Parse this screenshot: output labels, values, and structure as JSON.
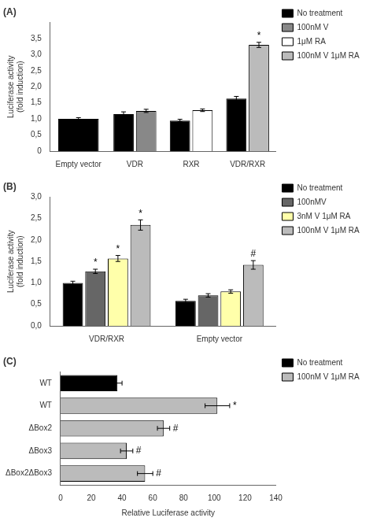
{
  "chart_data": [
    {
      "type": "bar",
      "title": "(A)",
      "categories": [
        "Empty vector",
        "VDR",
        "RXR",
        "VDR/RXR"
      ],
      "series": [
        {
          "name": "No treatment",
          "color": "#000000",
          "values": [
            1.0,
            1.15,
            0.95,
            1.63
          ],
          "errors": [
            0.04,
            0.07,
            0.04,
            0.07
          ],
          "annotations": [
            null,
            null,
            null,
            null
          ]
        },
        {
          "name": "100nM V",
          "color": "#888888",
          "values": [
            null,
            1.25,
            null,
            null
          ],
          "errors": [
            null,
            0.05,
            null,
            null
          ],
          "annotations": [
            null,
            null,
            null,
            null
          ]
        },
        {
          "name": "1μM RA",
          "color": "#ffffff",
          "values": [
            null,
            null,
            1.27,
            null
          ],
          "errors": [
            null,
            null,
            0.04,
            null
          ],
          "annotations": [
            null,
            null,
            null,
            null
          ]
        },
        {
          "name": "100nM V 1μM RA",
          "color": "#bbbbbb",
          "values": [
            null,
            null,
            null,
            3.3
          ],
          "errors": [
            null,
            null,
            null,
            0.08
          ],
          "annotations": [
            null,
            null,
            null,
            "*"
          ]
        }
      ],
      "ylabel": "Luciferase activity\n(fold induction)",
      "ylim": [
        0,
        4
      ],
      "yticks": [
        0,
        {
          "value": 0.5,
          "label": "0,5"
        },
        {
          "value": 1.0,
          "label": "1,0"
        },
        {
          "value": 1.5,
          "label": "1,5"
        },
        {
          "value": 2.0,
          "label": "2,0"
        },
        {
          "value": 2.5,
          "label": "2,5"
        },
        {
          "value": 3.0,
          "label": "3,0"
        },
        {
          "value": 3.5,
          "label": "3,5"
        }
      ],
      "grid": false,
      "legend": "right"
    },
    {
      "type": "bar",
      "title": "(B)",
      "categories": [
        "VDR/RXR",
        "Empty vector"
      ],
      "series": [
        {
          "name": "No treatment",
          "color": "#000000",
          "values": [
            1.0,
            0.58
          ],
          "errors": [
            0.04,
            0.04
          ],
          "annotations": [
            null,
            null
          ]
        },
        {
          "name": "100nMV",
          "color": "#666666",
          "values": [
            1.27,
            0.71
          ],
          "errors": [
            0.05,
            0.04
          ],
          "annotations": [
            "*",
            null
          ]
        },
        {
          "name": "3nM V 1μM RA",
          "color": "#ffffaa",
          "values": [
            1.57,
            0.8
          ],
          "errors": [
            0.07,
            0.04
          ],
          "annotations": [
            "*",
            null
          ]
        },
        {
          "name": "100nM V 1μM RA",
          "color": "#bbbbbb",
          "values": [
            2.35,
            1.42
          ],
          "errors": [
            0.12,
            0.1
          ],
          "annotations": [
            "*",
            "#"
          ]
        }
      ],
      "ylabel": "Luciferase activity\n(fold induction)",
      "ylim": [
        0,
        3.0
      ],
      "yticks": [
        {
          "value": 0.0,
          "label": "0,0"
        },
        {
          "value": 0.5,
          "label": "0,5"
        },
        {
          "value": 1.0,
          "label": "1,0"
        },
        {
          "value": 1.5,
          "label": "1,5"
        },
        {
          "value": 2.0,
          "label": "2,0"
        },
        {
          "value": 2.5,
          "label": "2,5"
        },
        {
          "value": 3.0,
          "label": "3,0"
        }
      ],
      "grid": false,
      "legend": "right"
    },
    {
      "type": "bar",
      "title": "(C)",
      "orientation": "horizontal",
      "categories": [
        "WT",
        "WT",
        "ΔBox2",
        "ΔBox3",
        "ΔBox2ΔBox3"
      ],
      "series": [
        {
          "name": "No treatment",
          "color": "#000000",
          "values": [
            37,
            null,
            null,
            null,
            null
          ],
          "errors": [
            3,
            null,
            null,
            null,
            null
          ],
          "annotations": [
            null,
            null,
            null,
            null,
            null
          ]
        },
        {
          "name": "100nM V 1μM RA",
          "color": "#bbbbbb",
          "values": [
            null,
            102,
            67,
            43,
            55
          ],
          "errors": [
            null,
            8,
            4,
            4,
            5
          ],
          "annotations": [
            null,
            "*",
            "#",
            "#",
            "#"
          ]
        }
      ],
      "xlabel": "Relative Luciferase activity",
      "xlim": [
        0,
        140
      ],
      "xticks": [
        0,
        20,
        40,
        60,
        80,
        100,
        120,
        140
      ],
      "grid": false,
      "legend": "right"
    }
  ]
}
